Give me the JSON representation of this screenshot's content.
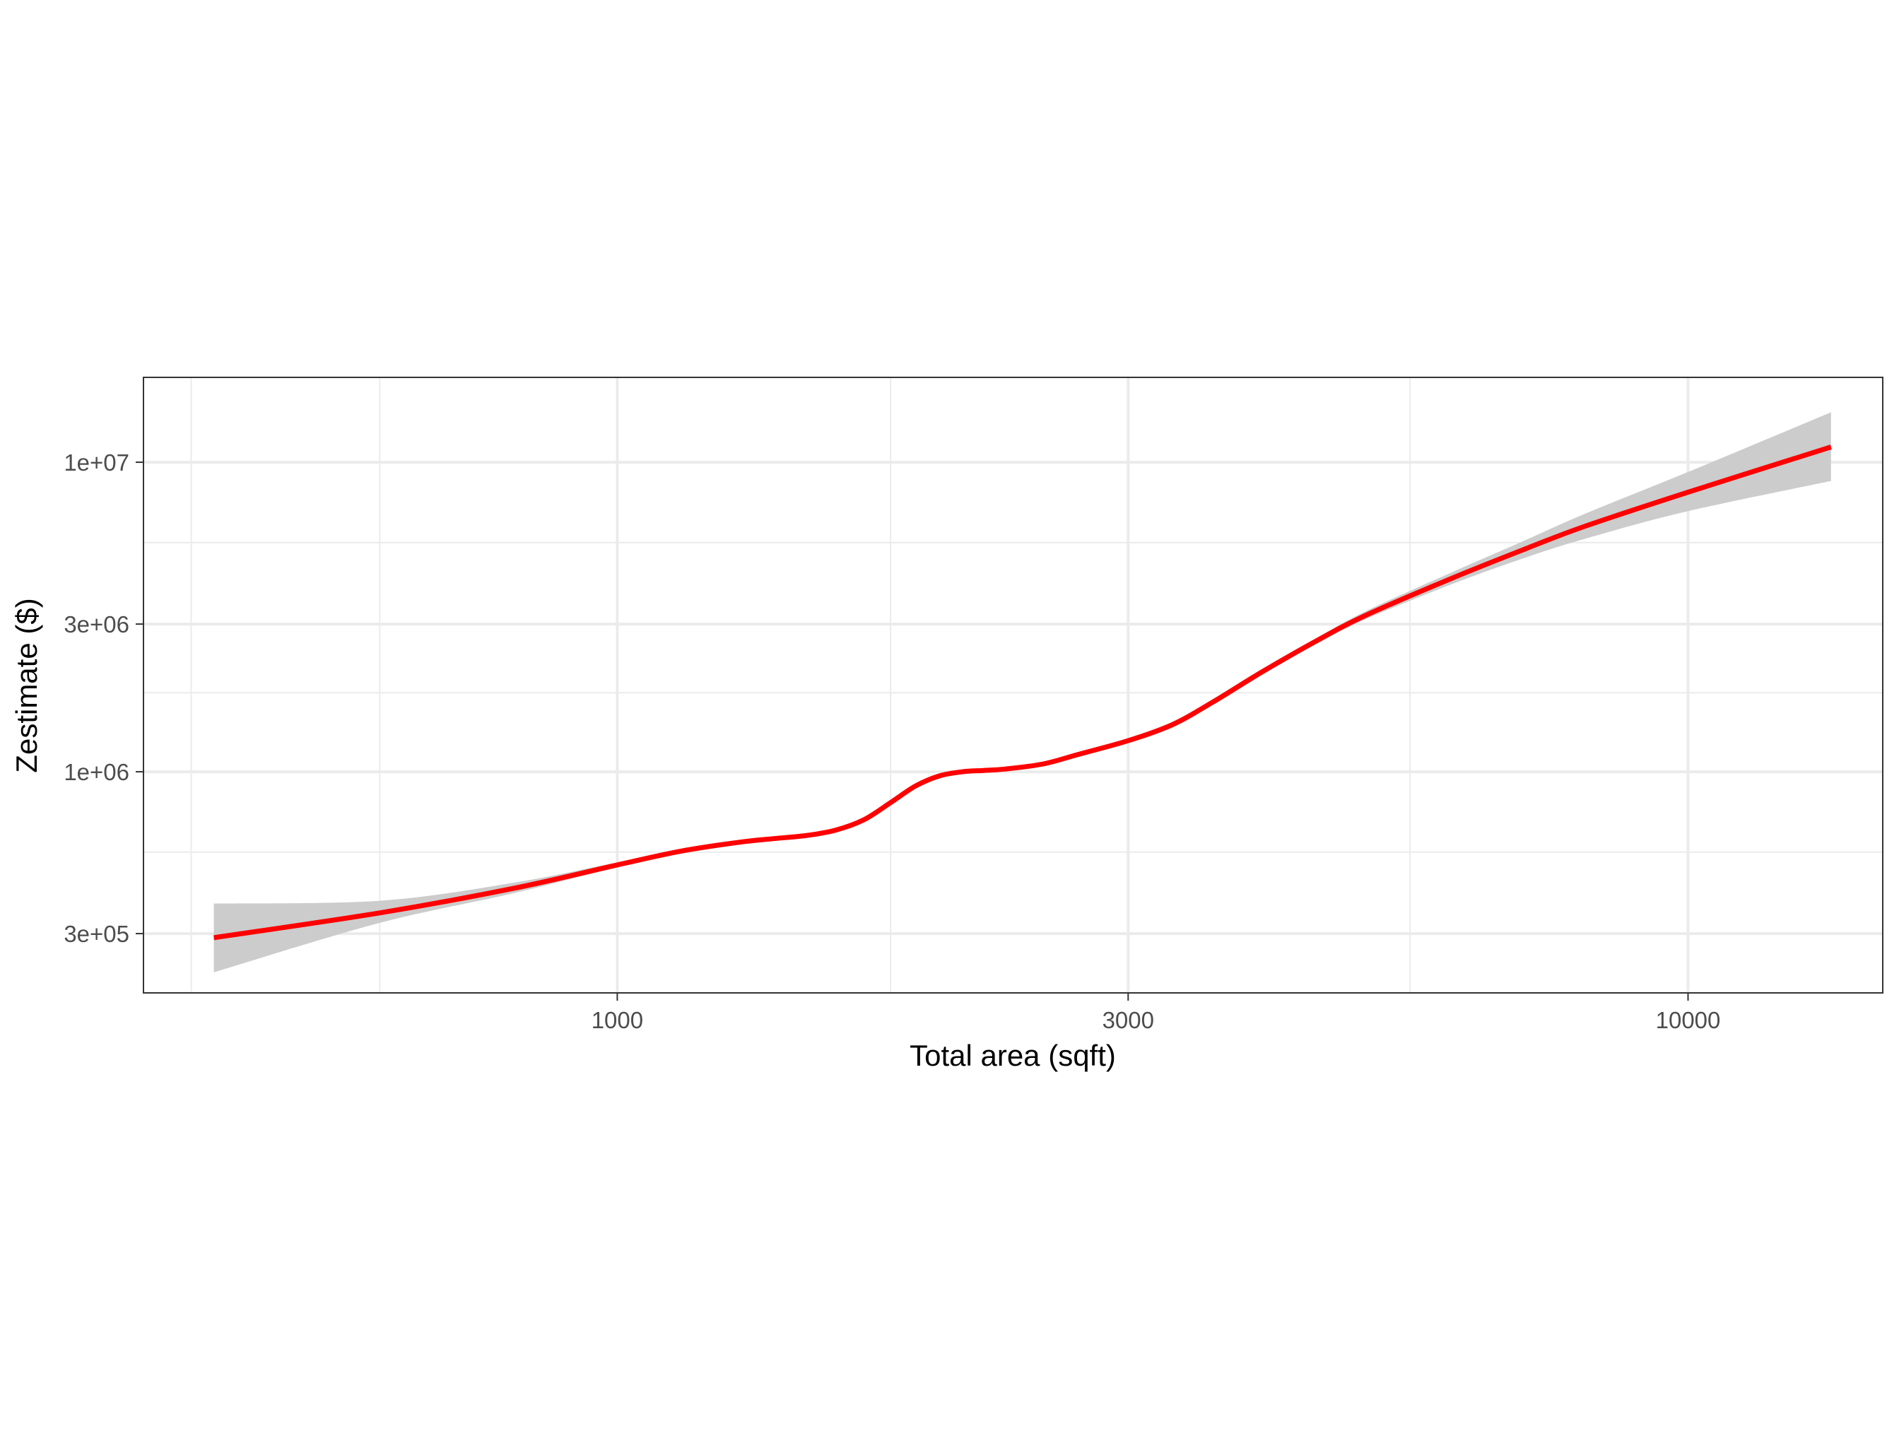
{
  "chart_data": {
    "type": "line",
    "title": "",
    "xlabel": "Total area (sqft)",
    "ylabel": "Zestimate ($)",
    "x_scale": "log10",
    "y_scale": "log10",
    "xlim": [
      361,
      15200
    ],
    "ylim": [
      193000,
      18800000
    ],
    "x_ticks": [
      {
        "value": 1000,
        "label": "1000"
      },
      {
        "value": 3000,
        "label": "3000"
      },
      {
        "value": 10000,
        "label": "10000"
      }
    ],
    "x_minor_gridlines": [
      400,
      600,
      1800,
      5500
    ],
    "y_ticks": [
      {
        "value": 300000,
        "label": "3e+05"
      },
      {
        "value": 1000000,
        "label": "1e+06"
      },
      {
        "value": 3000000,
        "label": "3e+06"
      },
      {
        "value": 10000000,
        "label": "1e+07"
      }
    ],
    "y_minor_gridlines": [
      550000,
      1800000,
      5500000
    ],
    "grid": true,
    "colors": {
      "line": "#ff0000",
      "band": "#cccccc",
      "grid": "#ebebeb",
      "panel_border": "#333333",
      "tick_label": "#4d4d4d"
    },
    "series": [
      {
        "style": "smooth-line-with-confidence-band",
        "x": [
          420,
          600,
          800,
          1000,
          1150,
          1300,
          1400,
          1500,
          1600,
          1700,
          1800,
          1900,
          2000,
          2100,
          2200,
          2300,
          2500,
          2700,
          3000,
          3300,
          3600,
          4000,
          4500,
          5000,
          6000,
          7000,
          8000,
          10000,
          13600
        ],
        "y": [
          291000,
          350000,
          420000,
          500000,
          555000,
          592000,
          608000,
          622000,
          648000,
          700000,
          795000,
          900000,
          970000,
          1000000,
          1010000,
          1020000,
          1060000,
          1140000,
          1260000,
          1420000,
          1680000,
          2100000,
          2650000,
          3200000,
          4200000,
          5200000,
          6200000,
          8000000,
          11200000
        ],
        "lower": [
          225000,
          325000,
          405000,
          492000,
          549000,
          587000,
          603000,
          617000,
          642000,
          693000,
          786000,
          890000,
          962000,
          993000,
          1003000,
          1012000,
          1049000,
          1125000,
          1238000,
          1390000,
          1645000,
          2055000,
          2590000,
          3110000,
          4020000,
          4880000,
          5650000,
          6950000,
          8700000
        ],
        "upper": [
          375000,
          383000,
          438000,
          510000,
          562000,
          598000,
          614000,
          628000,
          654000,
          708000,
          805000,
          910000,
          978000,
          1008000,
          1018000,
          1029000,
          1072000,
          1156000,
          1282000,
          1452000,
          1718000,
          2150000,
          2710000,
          3300000,
          4390000,
          5540000,
          6800000,
          9300000,
          14500000
        ]
      }
    ]
  }
}
